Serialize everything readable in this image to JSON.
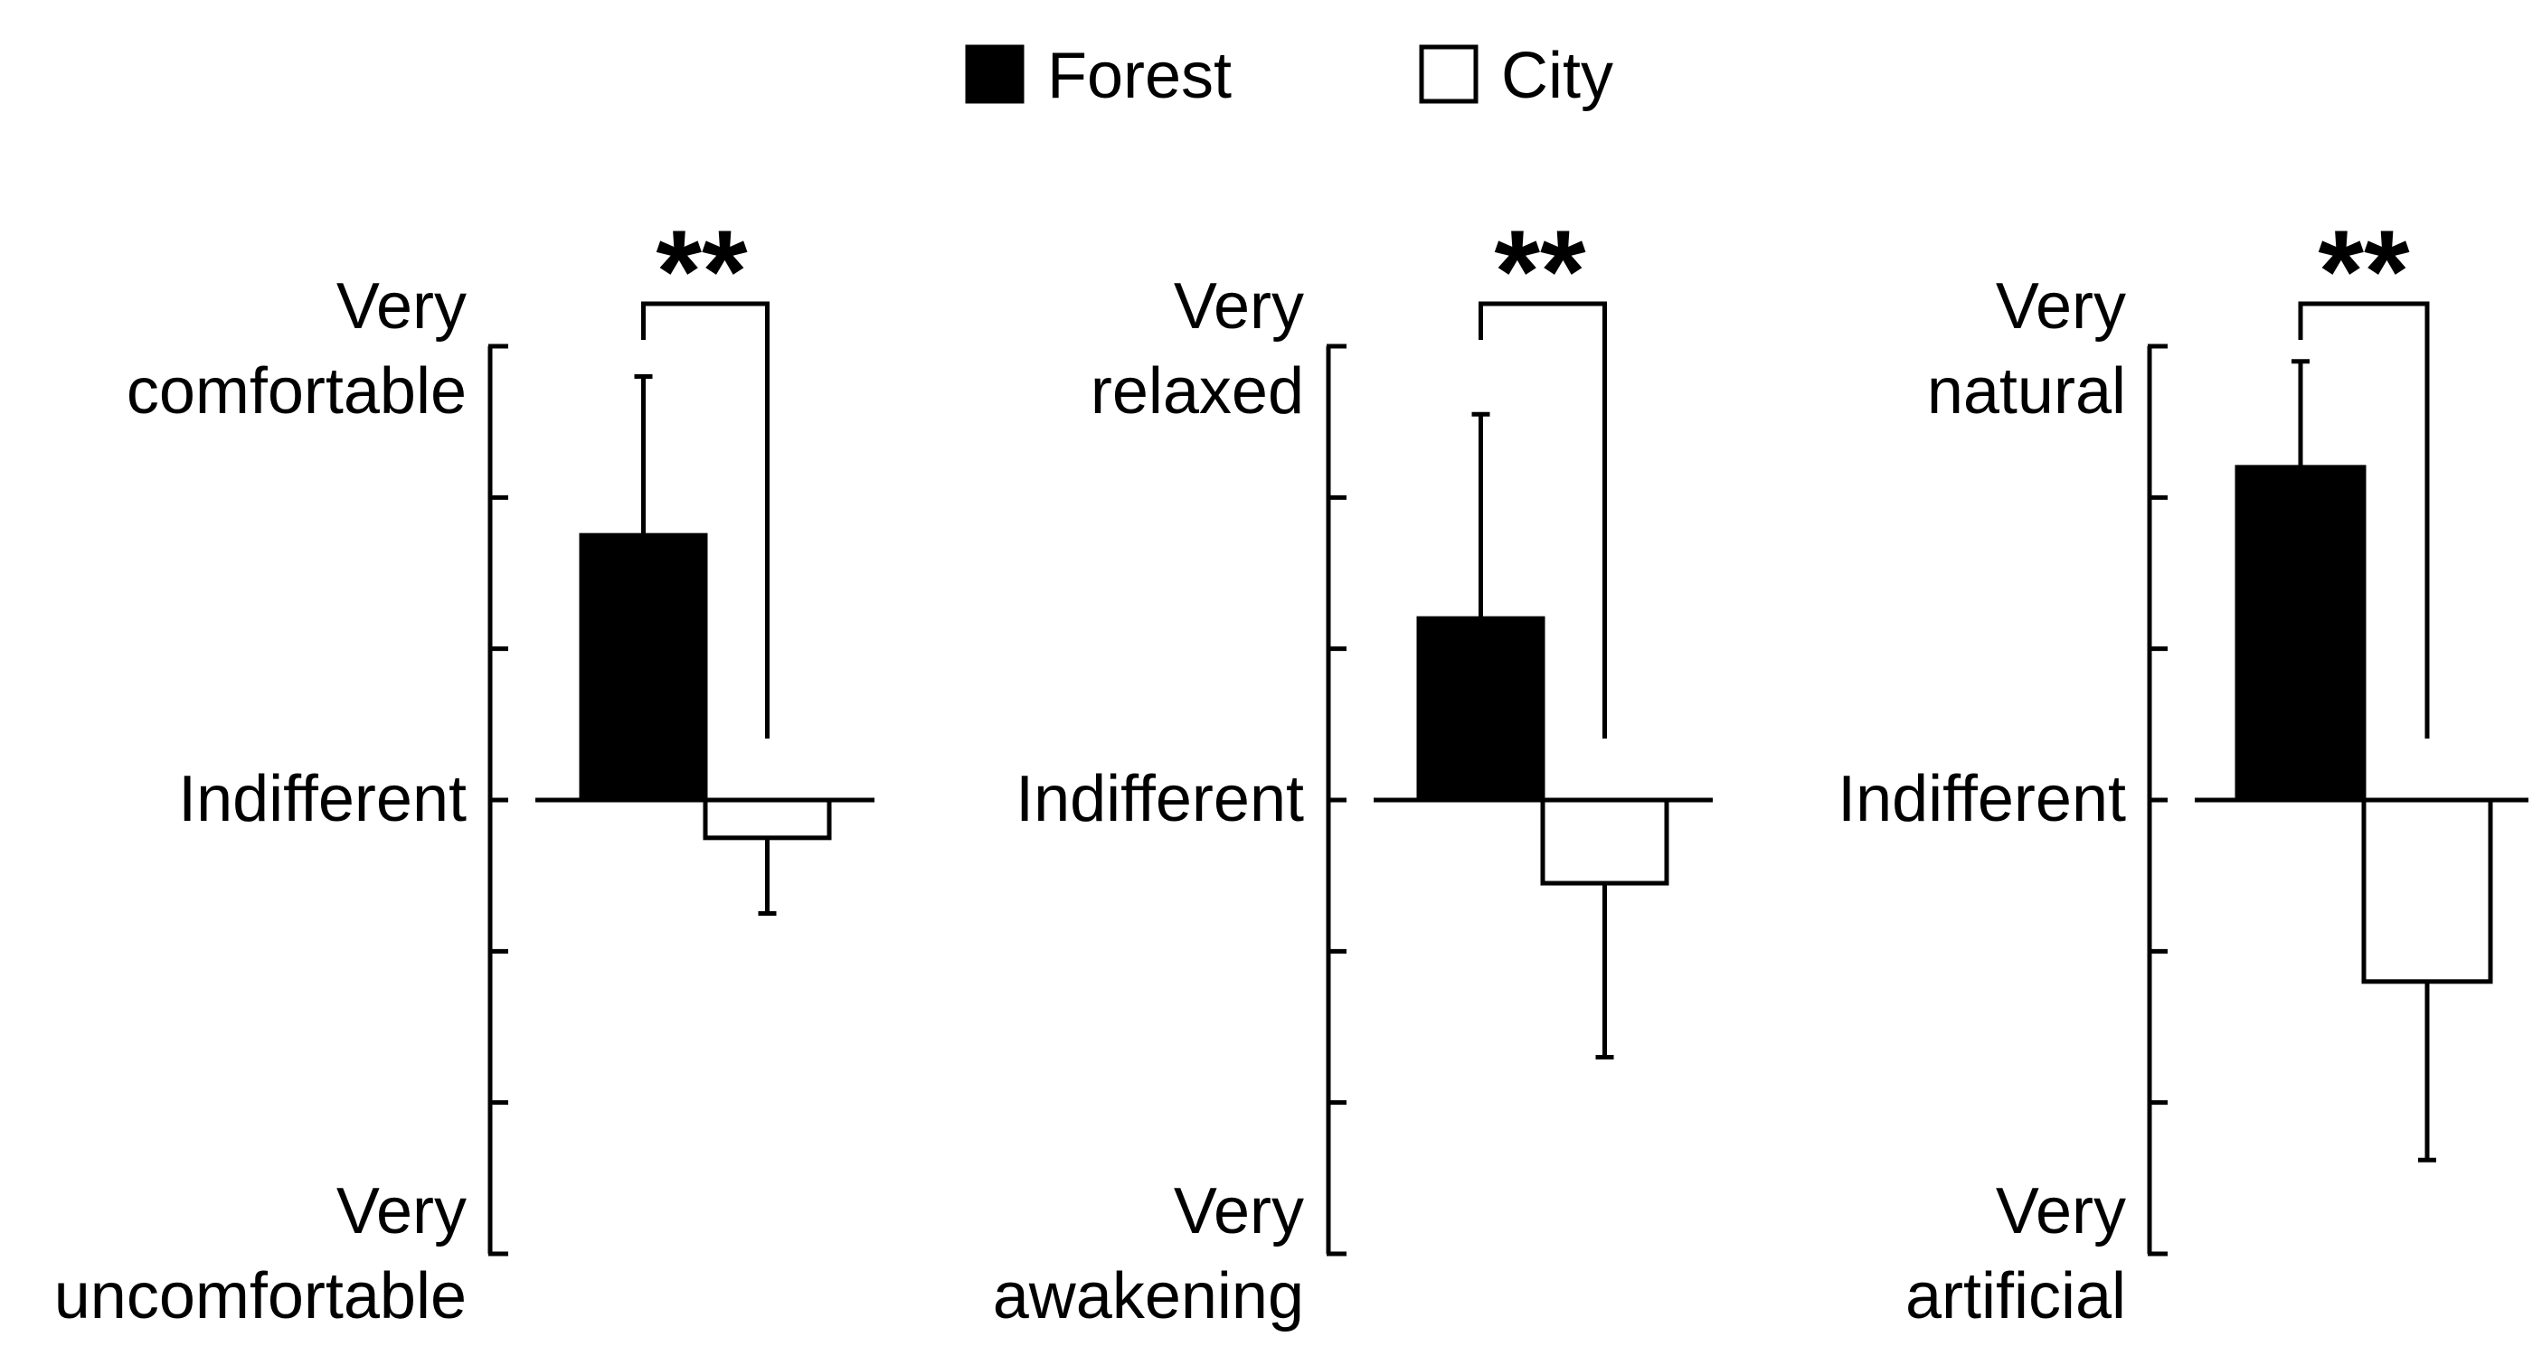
{
  "colors": {
    "forest": "#000000",
    "city": "#ffffff",
    "stroke": "#000000"
  },
  "legend": {
    "placement": "top-center",
    "items": [
      {
        "label": "Forest",
        "color": "#000000"
      },
      {
        "label": "City",
        "color": "#ffffff"
      }
    ]
  },
  "chart_data": [
    {
      "type": "bar",
      "categories": [
        "Forest",
        "City"
      ],
      "series": [
        {
          "values": [
            1.75,
            -0.25
          ]
        }
      ],
      "errors": [
        1.05,
        0.5
      ],
      "ylim": [
        -3,
        3
      ],
      "yticks": [
        -3,
        -2,
        -1,
        0,
        1,
        2,
        3
      ],
      "ylabels": {
        "top": [
          "Very",
          "comfortable"
        ],
        "middle": "Indifferent",
        "bottom": [
          "Very",
          "uncomfortable"
        ]
      },
      "annotation": "**"
    },
    {
      "type": "bar",
      "categories": [
        "Forest",
        "City"
      ],
      "series": [
        {
          "values": [
            1.2,
            -0.55
          ]
        }
      ],
      "errors": [
        1.35,
        1.15
      ],
      "ylim": [
        -3,
        3
      ],
      "yticks": [
        -3,
        -2,
        -1,
        0,
        1,
        2,
        3
      ],
      "ylabels": {
        "top": [
          "Very",
          "relaxed"
        ],
        "middle": "Indifferent",
        "bottom": [
          "Very",
          "awakening"
        ]
      },
      "annotation": "**"
    },
    {
      "type": "bar",
      "categories": [
        "Forest",
        "City"
      ],
      "series": [
        {
          "values": [
            2.2,
            -1.2
          ]
        }
      ],
      "errors": [
        0.7,
        1.18
      ],
      "ylim": [
        -3,
        3
      ],
      "yticks": [
        -3,
        -2,
        -1,
        0,
        1,
        2,
        3
      ],
      "ylabels": {
        "top": [
          "Very",
          "natural"
        ],
        "middle": "Indifferent",
        "bottom": [
          "Very",
          "artificial"
        ]
      },
      "annotation": "**"
    }
  ]
}
